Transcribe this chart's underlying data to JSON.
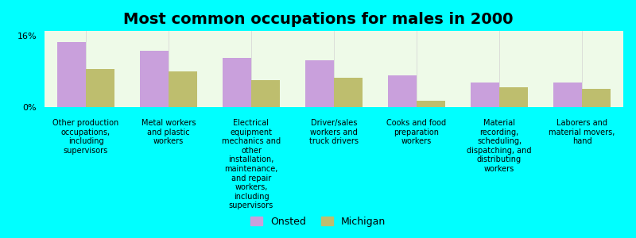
{
  "title": "Most common occupations for males in 2000",
  "background_color": "#00FFFF",
  "plot_bg_color": "#EEFAE8",
  "categories": [
    "Other production\noccupations,\nincluding\nsupervisors",
    "Metal workers\nand plastic\nworkers",
    "Electrical\nequipment\nmechanics and\nother\ninstallation,\nmaintenance,\nand repair\nworkers,\nincluding\nsupervisors",
    "Driver/sales\nworkers and\ntruck drivers",
    "Cooks and food\npreparation\nworkers",
    "Material\nrecording,\nscheduling,\ndispatching, and\ndistributing\nworkers",
    "Laborers and\nmaterial movers,\nhand"
  ],
  "onsted_values": [
    14.5,
    12.5,
    11.0,
    10.5,
    7.0,
    5.5,
    5.5
  ],
  "michigan_values": [
    8.5,
    8.0,
    6.0,
    6.5,
    1.5,
    4.5,
    4.0
  ],
  "onsted_color": "#C9A0DC",
  "michigan_color": "#BEBE6E",
  "yticks": [
    0,
    16
  ],
  "ytick_labels": [
    "0%",
    "16%"
  ],
  "ylim": [
    0,
    17
  ],
  "bar_width": 0.35,
  "legend_labels": [
    "Onsted",
    "Michigan"
  ],
  "title_fontsize": 14,
  "label_fontsize": 7.0
}
